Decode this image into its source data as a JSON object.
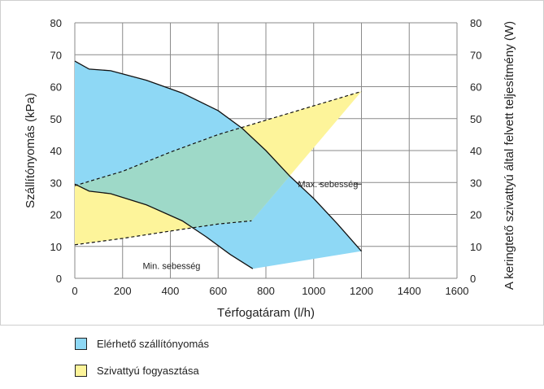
{
  "chart_data": {
    "type": "area",
    "xlabel": "Térfogatáram (l/h)",
    "ylabel": "Szállítónyomás (kPa)",
    "y2label": "A keringtető szivattyú által felvett teljesítmény (W)",
    "xlim": [
      0,
      1600
    ],
    "ylim": [
      0,
      80
    ],
    "y2lim": [
      0,
      80
    ],
    "xticks": [
      "0",
      "200",
      "400",
      "600",
      "800",
      "1000",
      "1200",
      "1400",
      "1600"
    ],
    "yticks": [
      "0",
      "10",
      "20",
      "30",
      "40",
      "50",
      "60",
      "70",
      "80"
    ],
    "y2ticks": [
      "0",
      "10",
      "20",
      "30",
      "40",
      "50",
      "60",
      "70",
      "80"
    ],
    "grid": true,
    "colors": {
      "pressure": "#8ed8f5",
      "consumption": "#fdf49a",
      "overlap": "#9ed9c8"
    },
    "series": [
      {
        "name": "Elérhető szállítónyomás",
        "role": "pressure-area",
        "max_curve": {
          "x": [
            0,
            60,
            150,
            300,
            450,
            600,
            700,
            800,
            900,
            1000,
            1100,
            1200
          ],
          "y": [
            68,
            65.5,
            65,
            62,
            58,
            52.5,
            47,
            40,
            32,
            25,
            17,
            8.5
          ]
        },
        "min_curve": {
          "x": [
            0,
            60,
            150,
            300,
            450,
            550,
            650,
            745
          ],
          "y": [
            29.5,
            27.3,
            26.5,
            23,
            18,
            13,
            7.5,
            3
          ]
        },
        "closing_edge": {
          "x": [
            745,
            1200
          ],
          "y": [
            3,
            8.5
          ]
        }
      },
      {
        "name": "Szivattyú fogyasztása",
        "role": "consumption-area",
        "max_curve": {
          "x": [
            0,
            200,
            400,
            600,
            800,
            1000,
            1200
          ],
          "y": [
            29,
            33.5,
            39.5,
            45,
            49.5,
            54,
            58.5
          ]
        },
        "min_curve": {
          "x": [
            0,
            200,
            400,
            600,
            740
          ],
          "y": [
            10.5,
            12.5,
            14.8,
            17,
            18
          ]
        },
        "closing_edge": {
          "x": [
            740,
            1200
          ],
          "y": [
            18,
            58.5
          ]
        }
      }
    ],
    "annotations": [
      {
        "text": "Max. sebesség",
        "x": 1060,
        "y": 29.5
      },
      {
        "text": "Min. sebesség",
        "x": 405,
        "y": 4
      }
    ]
  },
  "legend": {
    "items": [
      {
        "label": "Elérhető szállítónyomás",
        "color": "#8ed8f5"
      },
      {
        "label": "Szivattyú fogyasztása",
        "color": "#fdf49a"
      }
    ]
  }
}
